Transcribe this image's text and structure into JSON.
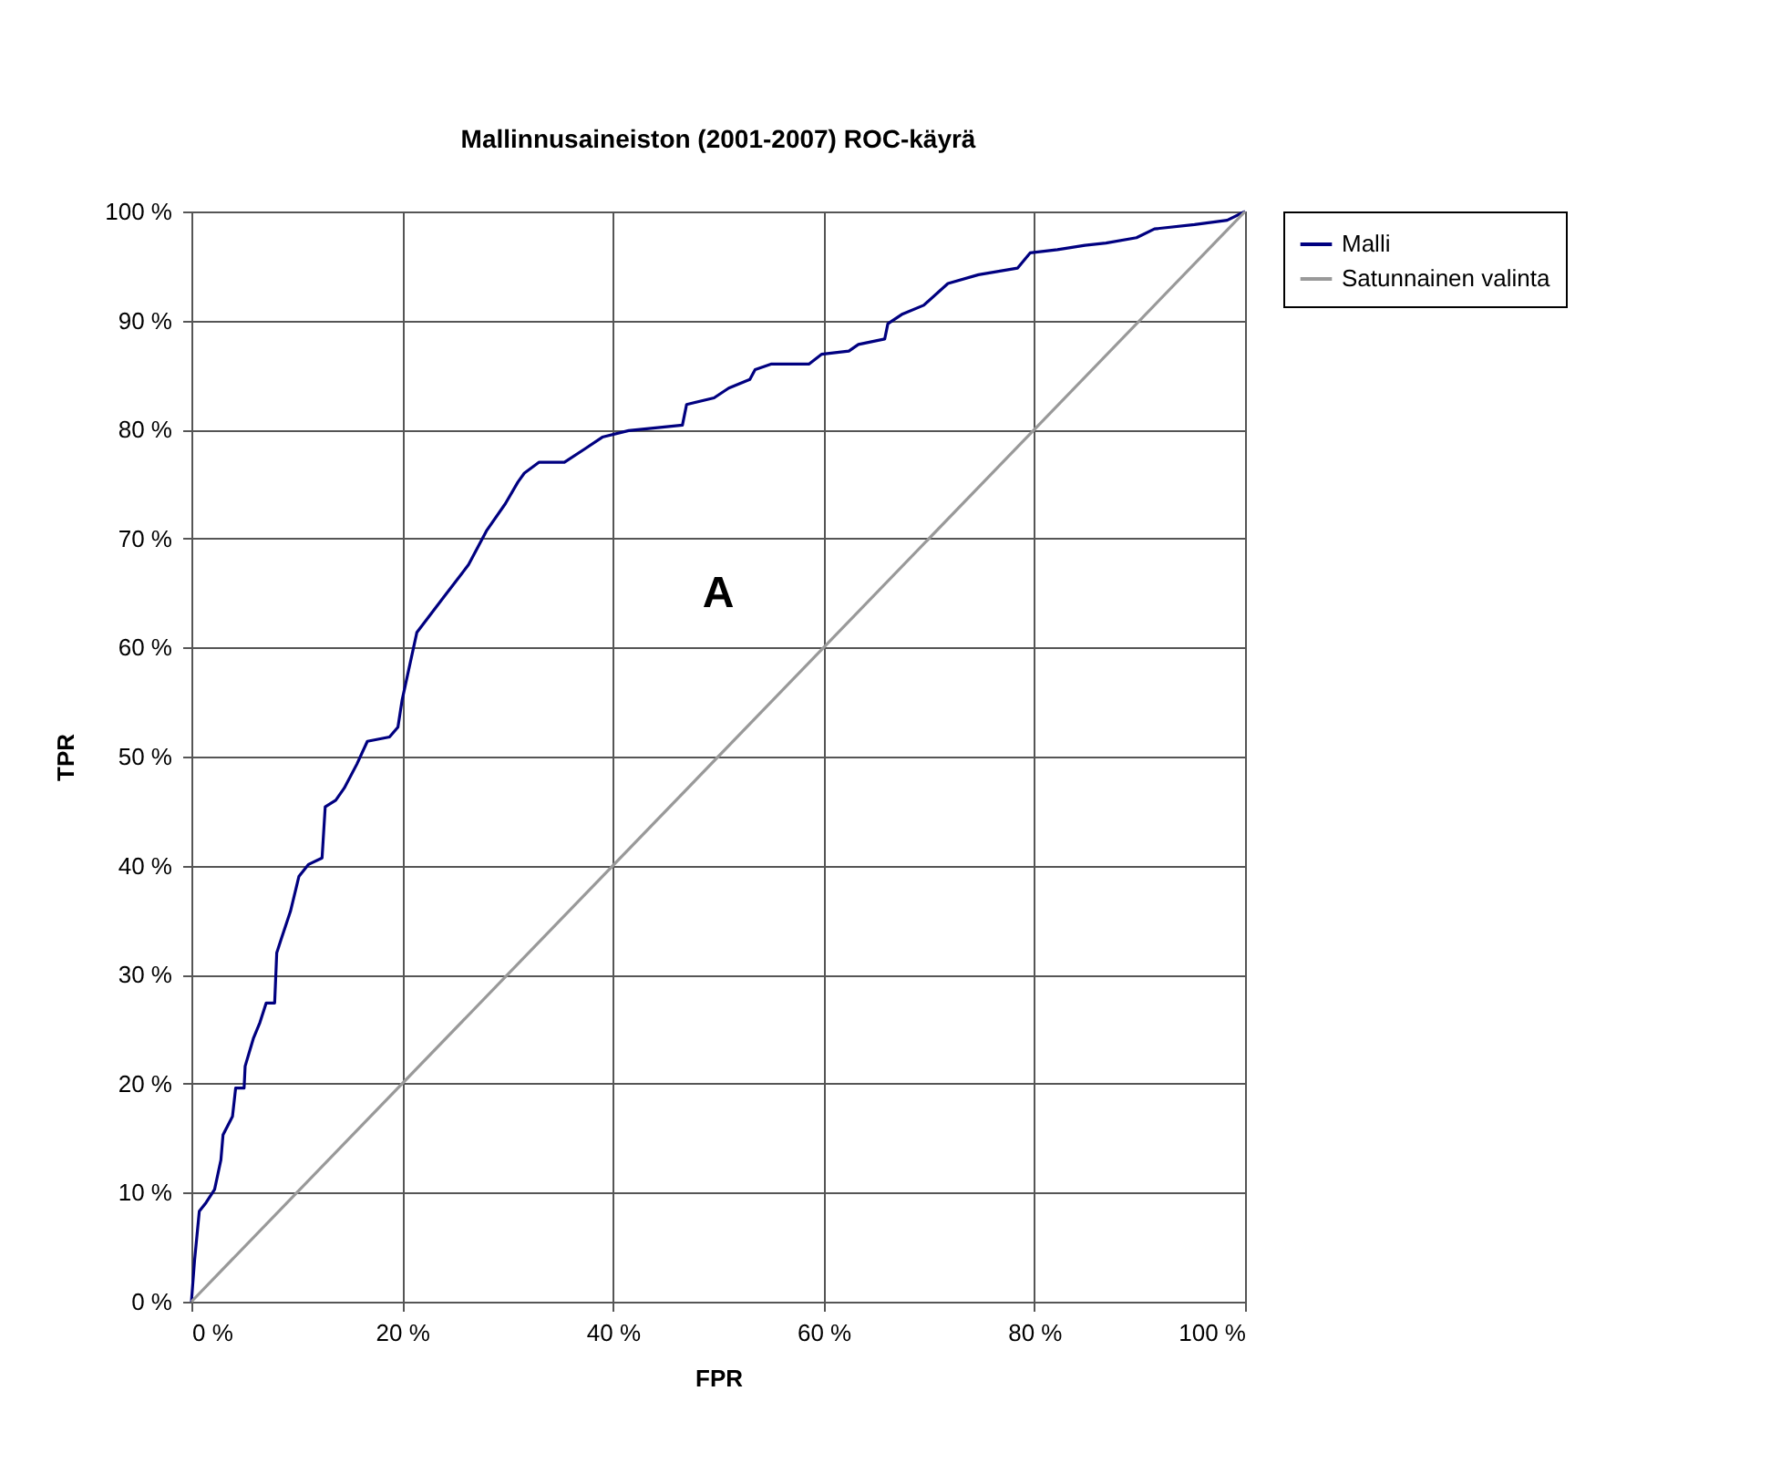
{
  "chart_data": {
    "type": "line",
    "title": "Mallinnusaineiston (2001-2007) ROC-käyrä",
    "xlabel": "FPR",
    "ylabel": "TPR",
    "xlim": [
      0,
      100
    ],
    "ylim": [
      0,
      100
    ],
    "xticks": [
      {
        "value": 0,
        "label": "0 %"
      },
      {
        "value": 20,
        "label": "20 %"
      },
      {
        "value": 40,
        "label": "40 %"
      },
      {
        "value": 60,
        "label": "60 %"
      },
      {
        "value": 80,
        "label": "80 %"
      },
      {
        "value": 100,
        "label": "100 %"
      }
    ],
    "yticks": [
      {
        "value": 0,
        "label": "0 %"
      },
      {
        "value": 10,
        "label": "10 %"
      },
      {
        "value": 20,
        "label": "20 %"
      },
      {
        "value": 30,
        "label": "30 %"
      },
      {
        "value": 40,
        "label": "40 %"
      },
      {
        "value": 50,
        "label": "50 %"
      },
      {
        "value": 60,
        "label": "60 %"
      },
      {
        "value": 70,
        "label": "70 %"
      },
      {
        "value": 80,
        "label": "80 %"
      },
      {
        "value": 90,
        "label": "90 %"
      },
      {
        "value": 100,
        "label": "100 %"
      }
    ],
    "grid": true,
    "legend": "right",
    "marker": "none",
    "line_style": "solid",
    "annotations": [
      "A"
    ],
    "series": [
      {
        "name": "Malli",
        "color": "#000080",
        "x": [
          0,
          0.3,
          0.75,
          1.4,
          2.2,
          2.8,
          3,
          3.9,
          4.2,
          5,
          5.1,
          5.9,
          6.5,
          7.1,
          7.9,
          8.1,
          8.5,
          9.4,
          10.2,
          11.1,
          12.4,
          12.7,
          13.7,
          14.5,
          15.7,
          16.7,
          18.8,
          19.6,
          20,
          21.4,
          24,
          26.3,
          28,
          29.8,
          31,
          31.6,
          33,
          35.4,
          37.3,
          39,
          41.5,
          46.6,
          47,
          49.6,
          51,
          53,
          53.5,
          55,
          58.6,
          59.8,
          62.4,
          63.3,
          65.8,
          66.1,
          67.5,
          69.5,
          71.8,
          74.7,
          78.4,
          79.6,
          82.2,
          84.8,
          86.8,
          89.7,
          91.4,
          95.2,
          98.3,
          100
        ],
        "values": [
          0,
          3.8,
          8.3,
          9.1,
          10.3,
          13,
          15.3,
          17,
          19.6,
          19.6,
          21.6,
          24.2,
          25.6,
          27.4,
          27.4,
          32,
          33.2,
          35.8,
          39,
          40.1,
          40.7,
          45.4,
          46,
          47.1,
          49.3,
          51.4,
          51.8,
          52.7,
          55.2,
          61.4,
          64.7,
          67.6,
          70.7,
          73.2,
          75.2,
          76,
          77,
          77,
          78.2,
          79.3,
          79.9,
          80.4,
          82.3,
          82.9,
          83.8,
          84.6,
          85.5,
          86,
          86,
          86.9,
          87.2,
          87.8,
          88.3,
          89.7,
          90.6,
          91.4,
          93.4,
          94.2,
          94.8,
          96.2,
          96.5,
          96.9,
          97.1,
          97.6,
          98.4,
          98.8,
          99.2,
          100
        ]
      },
      {
        "name": "Satunnainen valinta",
        "color": "#999999",
        "x": [
          0,
          100
        ],
        "values": [
          0,
          100
        ]
      }
    ]
  }
}
